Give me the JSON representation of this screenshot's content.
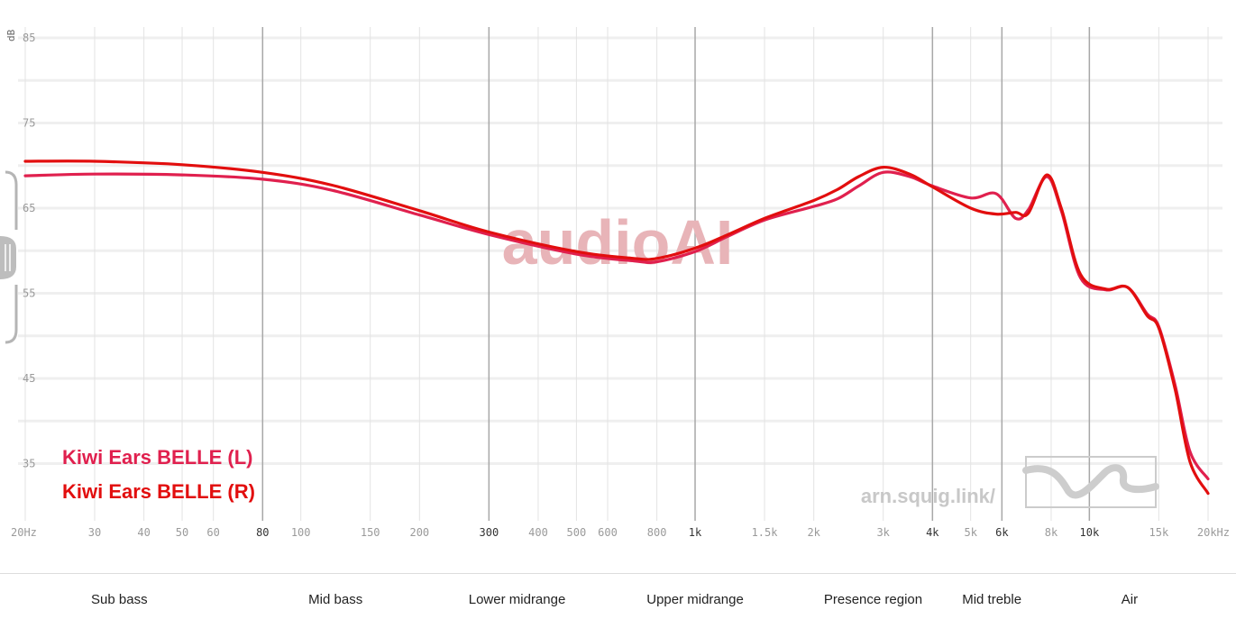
{
  "chart_data": {
    "type": "line",
    "ylabel": "dB",
    "ylim": [
      30,
      86
    ],
    "xlim": [
      20,
      20000
    ],
    "x_scale": "log",
    "y_ticks": [
      35,
      45,
      55,
      65,
      75,
      85
    ],
    "x_ticks": [
      {
        "v": 20,
        "label": "20Hz",
        "major": false
      },
      {
        "v": 30,
        "label": "30",
        "major": false
      },
      {
        "v": 40,
        "label": "40",
        "major": false
      },
      {
        "v": 50,
        "label": "50",
        "major": false
      },
      {
        "v": 60,
        "label": "60",
        "major": false
      },
      {
        "v": 80,
        "label": "80",
        "major": true
      },
      {
        "v": 100,
        "label": "100",
        "major": false
      },
      {
        "v": 150,
        "label": "150",
        "major": false
      },
      {
        "v": 200,
        "label": "200",
        "major": false
      },
      {
        "v": 300,
        "label": "300",
        "major": true
      },
      {
        "v": 400,
        "label": "400",
        "major": false
      },
      {
        "v": 500,
        "label": "500",
        "major": false
      },
      {
        "v": 600,
        "label": "600",
        "major": false
      },
      {
        "v": 800,
        "label": "800",
        "major": false
      },
      {
        "v": 1000,
        "label": "1k",
        "major": true
      },
      {
        "v": 1500,
        "label": "1.5k",
        "major": false
      },
      {
        "v": 2000,
        "label": "2k",
        "major": false
      },
      {
        "v": 3000,
        "label": "3k",
        "major": false
      },
      {
        "v": 4000,
        "label": "4k",
        "major": true
      },
      {
        "v": 5000,
        "label": "5k",
        "major": false
      },
      {
        "v": 6000,
        "label": "6k",
        "major": true
      },
      {
        "v": 8000,
        "label": "8k",
        "major": false
      },
      {
        "v": 10000,
        "label": "10k",
        "major": true
      },
      {
        "v": 15000,
        "label": "15k",
        "major": false
      },
      {
        "v": 20000,
        "label": "20kHz",
        "major": false
      }
    ],
    "grid": true,
    "series": [
      {
        "name": "Kiwi Ears BELLE (L)",
        "color": "#e0204e",
        "x": [
          20,
          30,
          50,
          80,
          120,
          200,
          300,
          500,
          700,
          800,
          1000,
          1200,
          1500,
          2000,
          2300,
          2600,
          3000,
          3500,
          4000,
          5000,
          5800,
          6500,
          7000,
          7800,
          8500,
          9500,
          11000,
          12500,
          14000,
          15000,
          16500,
          18000,
          20000
        ],
        "y": [
          68.8,
          69.0,
          68.9,
          68.4,
          67.1,
          64.2,
          61.9,
          59.6,
          58.8,
          58.7,
          59.9,
          61.6,
          63.6,
          65.2,
          66.1,
          67.6,
          69.2,
          68.7,
          67.6,
          66.2,
          66.7,
          63.8,
          64.8,
          68.7,
          64.6,
          56.8,
          55.4,
          55.7,
          52.6,
          51.1,
          44.2,
          36.4,
          33.2
        ]
      },
      {
        "name": "Kiwi Ears BELLE (R)",
        "color": "#e20e0e",
        "x": [
          20,
          30,
          50,
          80,
          120,
          200,
          300,
          500,
          700,
          800,
          1000,
          1200,
          1500,
          2000,
          2300,
          2600,
          3000,
          3500,
          4000,
          5000,
          5800,
          6500,
          7000,
          7800,
          8500,
          9500,
          11000,
          12500,
          14000,
          15000,
          16500,
          18000,
          20000
        ],
        "y": [
          70.5,
          70.5,
          70.1,
          69.2,
          67.7,
          64.7,
          62.2,
          59.9,
          59.1,
          59.1,
          60.3,
          61.8,
          63.8,
          65.9,
          67.2,
          68.7,
          69.8,
          69.0,
          67.5,
          65.0,
          64.3,
          64.5,
          64.4,
          68.9,
          64.9,
          57.2,
          55.5,
          55.7,
          52.4,
          50.9,
          43.7,
          35.2,
          31.5
        ]
      }
    ]
  },
  "legend": [
    {
      "label": "Kiwi Ears BELLE (L)",
      "color": "#e0204e"
    },
    {
      "label": "Kiwi Ears BELLE (R)",
      "color": "#e20e0e"
    }
  ],
  "watermark": "audioAI",
  "site": "arn.squig.link/",
  "bands": [
    {
      "label": "Sub bass",
      "from": 20,
      "to": 60
    },
    {
      "label": "Mid bass",
      "from": 60,
      "to": 250
    },
    {
      "label": "Lower midrange",
      "from": 250,
      "to": 500
    },
    {
      "label": "Upper midrange",
      "from": 500,
      "to": 2000
    },
    {
      "label": "Presence region",
      "from": 2000,
      "to": 4000
    },
    {
      "label": "Mid treble",
      "from": 4000,
      "to": 8000
    },
    {
      "label": "Air",
      "from": 8000,
      "to": 20000
    }
  ]
}
